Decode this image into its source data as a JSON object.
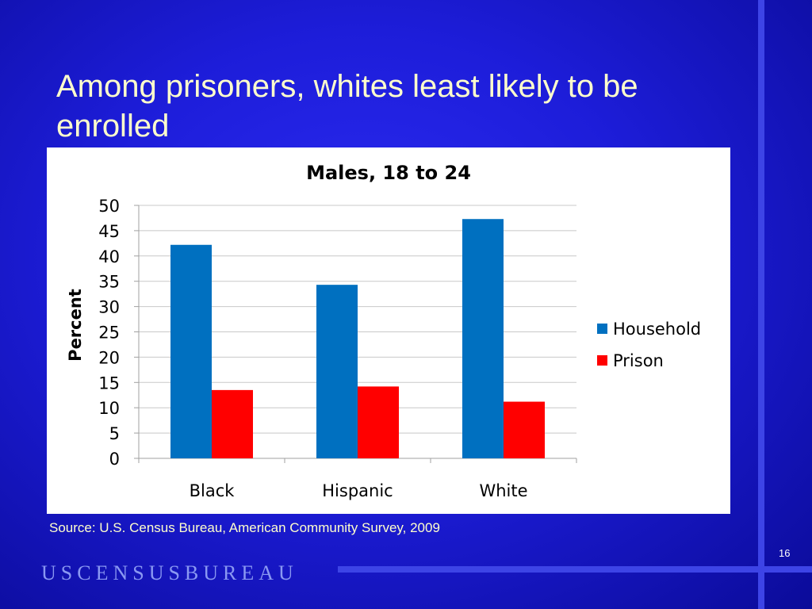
{
  "slide": {
    "title": "Among prisoners, whites least likely to be enrolled",
    "source": "Source: U.S. Census Bureau, American Community Survey, 2009",
    "footer": "USCENSUSBUREAU",
    "page_number": "16"
  },
  "colors": {
    "background": "#1d1dd9",
    "title_text": "#ffffcc",
    "accent_lines": "#3d44e6",
    "household": "#0070c0",
    "prison": "#ff0000"
  },
  "chart_data": {
    "type": "bar",
    "title": "Males, 18 to 24",
    "ylabel": "Percent",
    "xlabel": "",
    "categories": [
      "Black",
      "Hispanic",
      "White"
    ],
    "series": [
      {
        "name": "Household",
        "values": [
          42.2,
          34.3,
          47.3
        ]
      },
      {
        "name": "Prison",
        "values": [
          13.5,
          14.2,
          11.2
        ]
      }
    ],
    "ylim": [
      0,
      50
    ],
    "yticks": [
      0,
      5,
      10,
      15,
      20,
      25,
      30,
      35,
      40,
      45,
      50
    ],
    "grid": true,
    "legend": "right"
  }
}
